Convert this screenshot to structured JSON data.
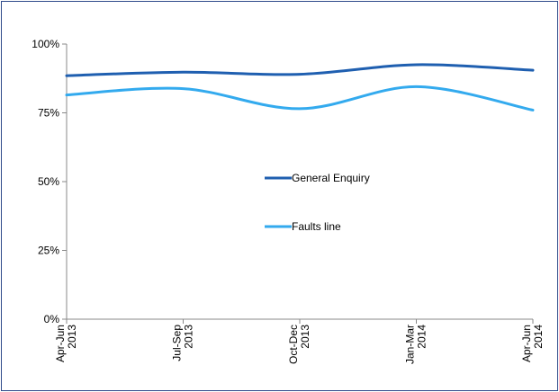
{
  "chart_data": {
    "type": "line",
    "categories": [
      [
        "Apr-Jun",
        "2013"
      ],
      [
        "Jul-Sep",
        "2013"
      ],
      [
        "Oct-Dec",
        "2013"
      ],
      [
        "Jan-Mar",
        "2014"
      ],
      [
        "Apr-Jun",
        "2014"
      ]
    ],
    "y_ticks": [
      "0%",
      "25%",
      "50%",
      "75%",
      "100%"
    ],
    "ylim": [
      0,
      100
    ],
    "grid": false,
    "legend_position": "center",
    "series": [
      {
        "name": "General Enquiry",
        "color": "#1f5fb0",
        "values": [
          88.5,
          89.8,
          89.0,
          92.5,
          90.5
        ]
      },
      {
        "name": "Faults line",
        "color": "#33aaee",
        "values": [
          81.5,
          83.8,
          76.5,
          84.5,
          76.0
        ]
      }
    ]
  }
}
